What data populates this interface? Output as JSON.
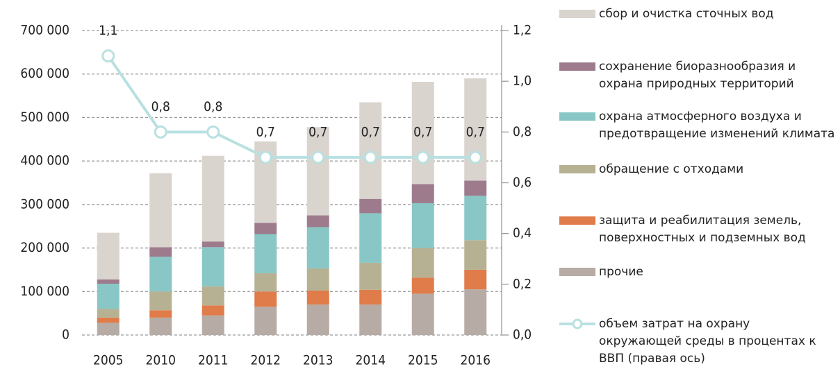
{
  "chart_data": {
    "type": "bar",
    "categories": [
      "2005",
      "2010",
      "2011",
      "2012",
      "2013",
      "2014",
      "2015",
      "2016"
    ],
    "series": [
      {
        "name": "прочие",
        "color": "#b6aca5",
        "values": [
          28000,
          40000,
          45000,
          65000,
          70000,
          70000,
          95000,
          105000
        ]
      },
      {
        "name": "защита и реабилитация земель, поверхностных и подземных вод",
        "color": "#e07c4a",
        "values": [
          12000,
          17000,
          23000,
          35000,
          32000,
          34000,
          37000,
          45000
        ]
      },
      {
        "name": "обращение с отходами",
        "color": "#b7b193",
        "values": [
          20000,
          43000,
          44000,
          42000,
          51000,
          62000,
          68000,
          68000
        ]
      },
      {
        "name": "охрана атмосферного воздуха и предотвращение изменений климата",
        "color": "#88c7c5",
        "values": [
          58000,
          80000,
          90000,
          90000,
          95000,
          114000,
          103000,
          102000
        ]
      },
      {
        "name": "сохранение биоразнообразия и охрана природных территорий",
        "color": "#9d7b8d",
        "values": [
          10000,
          22000,
          13000,
          26000,
          27000,
          33000,
          44000,
          35000
        ]
      },
      {
        "name": "сбор и очистка сточных вод",
        "color": "#dad4ce",
        "values": [
          107000,
          170000,
          197000,
          187000,
          203000,
          222000,
          235000,
          235000
        ]
      },
      {
        "name": "объем затрат на охрану окружающей среды в процентах к ВВП (правая ось)",
        "color": "#b9e0e0",
        "type": "line",
        "axis": "y2",
        "values": [
          1.1,
          0.8,
          0.8,
          0.7,
          0.7,
          0.7,
          0.7,
          0.7
        ],
        "value_labels": [
          "1,1",
          "0,8",
          "0,8",
          "0,7",
          "0,7",
          "0,7",
          "0,7",
          "0,7"
        ]
      }
    ],
    "ylim": [
      0,
      700000
    ],
    "yticks": [
      {
        "value": 0,
        "label": "0"
      },
      {
        "value": 100000,
        "label": "100 000"
      },
      {
        "value": 200000,
        "label": "200 000"
      },
      {
        "value": 300000,
        "label": "300 000"
      },
      {
        "value": 400000,
        "label": "400 000"
      },
      {
        "value": 500000,
        "label": "500 000"
      },
      {
        "value": 600000,
        "label": "600 000"
      },
      {
        "value": 700000,
        "label": "700 000"
      }
    ],
    "y2lim": [
      0,
      1.2
    ],
    "y2ticks": [
      {
        "value": 0,
        "label": "0,0"
      },
      {
        "value": 0.2,
        "label": "0,2"
      },
      {
        "value": 0.4,
        "label": "0,4"
      },
      {
        "value": 0.6,
        "label": "0,6"
      },
      {
        "value": 0.8,
        "label": "0,8"
      },
      {
        "value": 1.0,
        "label": "1,0"
      },
      {
        "value": 1.2,
        "label": "1,2"
      }
    ],
    "grid": true,
    "legend": "right"
  }
}
